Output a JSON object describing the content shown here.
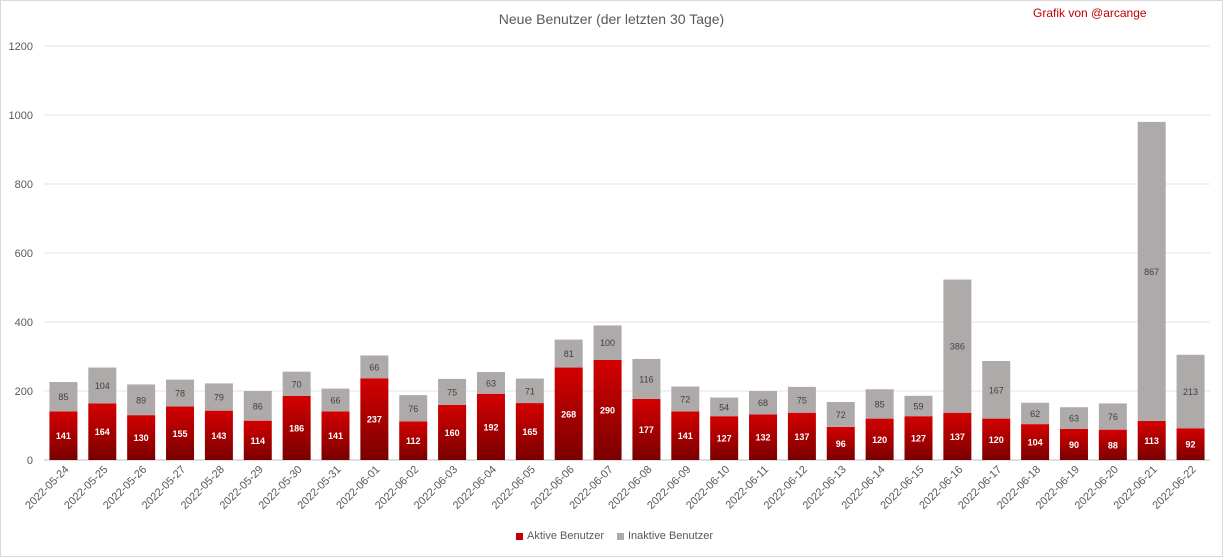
{
  "chart_data": {
    "type": "bar",
    "stacked": true,
    "title": "Neue Benutzer (der letzten 30 Tage)",
    "credit": "Grafik von @arcange",
    "categories": [
      "2022-05-24",
      "2022-05-25",
      "2022-05-26",
      "2022-05-27",
      "2022-05-28",
      "2022-05-29",
      "2022-05-30",
      "2022-05-31",
      "2022-06-01",
      "2022-06-02",
      "2022-06-03",
      "2022-06-04",
      "2022-06-05",
      "2022-06-06",
      "2022-06-07",
      "2022-06-08",
      "2022-06-09",
      "2022-06-10",
      "2022-06-11",
      "2022-06-12",
      "2022-06-13",
      "2022-06-14",
      "2022-06-15",
      "2022-06-16",
      "2022-06-17",
      "2022-06-18",
      "2022-06-19",
      "2022-06-20",
      "2022-06-21",
      "2022-06-22"
    ],
    "series": [
      {
        "name": "Aktive Benutzer",
        "color": "#c00000",
        "values": [
          141,
          164,
          130,
          155,
          143,
          114,
          186,
          141,
          237,
          112,
          160,
          192,
          165,
          268,
          290,
          177,
          141,
          127,
          132,
          137,
          96,
          120,
          127,
          137,
          120,
          104,
          90,
          88,
          113,
          92
        ]
      },
      {
        "name": "Inaktive Benutzer",
        "color": "#aeaaaa",
        "values": [
          85,
          104,
          89,
          78,
          79,
          86,
          70,
          66,
          66,
          76,
          75,
          63,
          71,
          81,
          100,
          116,
          72,
          54,
          68,
          75,
          72,
          85,
          59,
          386,
          167,
          62,
          63,
          76,
          867,
          213
        ]
      }
    ],
    "ylim": [
      0,
      1200
    ],
    "yticks": [
      0,
      200,
      400,
      600,
      800,
      1000,
      1200
    ],
    "grid": true,
    "legend_position": "bottom"
  }
}
